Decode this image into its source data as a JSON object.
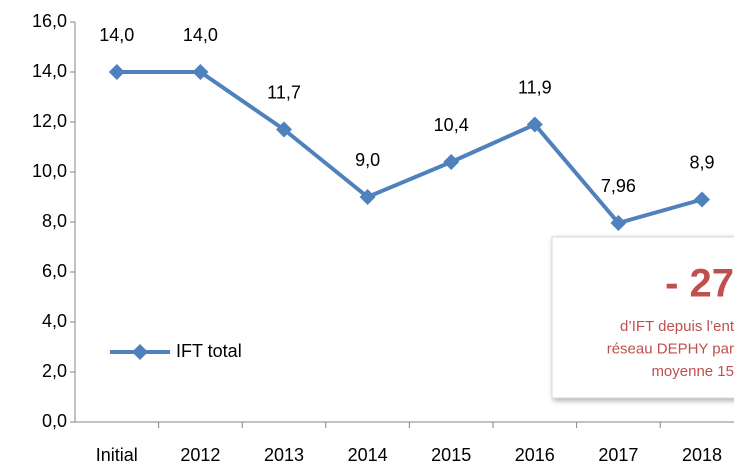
{
  "chart_data": {
    "type": "line",
    "categories": [
      "Initial",
      "2012",
      "2013",
      "2014",
      "2015",
      "2016",
      "2017",
      "2018"
    ],
    "series": [
      {
        "name": "IFT total",
        "color": "#4f81bd",
        "values": [
          14.0,
          14.0,
          11.7,
          9.0,
          10.4,
          11.9,
          7.96,
          8.9
        ],
        "value_labels": [
          "14,0",
          "14,0",
          "11,7",
          "9,0",
          "10,4",
          "11,9",
          "7,96",
          "8,9"
        ]
      }
    ],
    "ylim": [
      0,
      16
    ],
    "yticks": [
      {
        "value": 0,
        "label": "0,0"
      },
      {
        "value": 2,
        "label": "2,0"
      },
      {
        "value": 4,
        "label": "4,0"
      },
      {
        "value": 6,
        "label": "6,0"
      },
      {
        "value": 8,
        "label": "8,0"
      },
      {
        "value": 10,
        "label": "10,0"
      },
      {
        "value": 12,
        "label": "12,0"
      },
      {
        "value": 14,
        "label": "14,0"
      },
      {
        "value": 16,
        "label": "16,0"
      }
    ],
    "grid": false,
    "legend": "left",
    "annotations": {
      "headline": "- 27",
      "lines": [
        "d’IFT depuis l’ent",
        "réseau DEPHY par",
        "moyenne 15"
      ],
      "color": "#c0504d"
    }
  }
}
